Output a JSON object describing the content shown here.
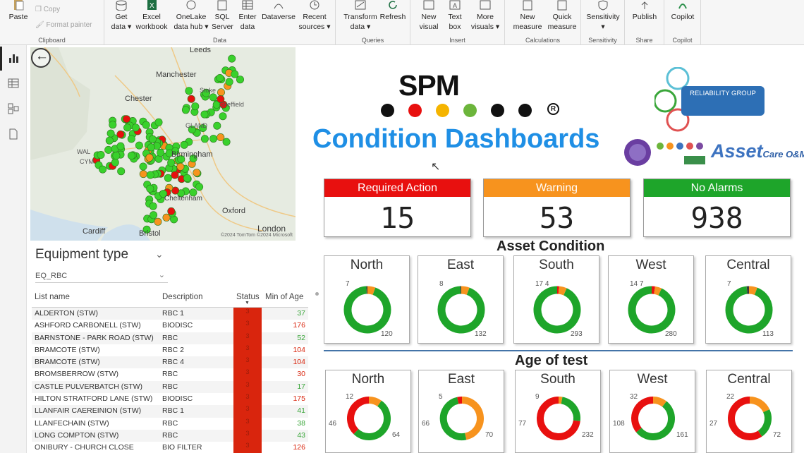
{
  "ribbon": {
    "clipboard": {
      "paste": "Paste",
      "copy": "Copy",
      "format_painter": "Format painter",
      "group": "Clipboard"
    },
    "data": {
      "group": "Data",
      "get_data": "Get data",
      "excel": "Excel workbook",
      "onelake": "OneLake data hub",
      "sql": "SQL Server",
      "enter": "Enter data",
      "dataverse": "Dataverse",
      "recent": "Recent sources"
    },
    "queries": {
      "group": "Queries",
      "transform": "Transform data",
      "refresh": "Refresh"
    },
    "insert": {
      "group": "Insert",
      "new_visual": "New visual",
      "text_box": "Text box",
      "more_visuals": "More visuals"
    },
    "calculations": {
      "group": "Calculations",
      "new_measure": "New measure",
      "quick_measure": "Quick measure"
    },
    "sensitivity": {
      "group": "Sensitivity",
      "sensitivity": "Sensitivity"
    },
    "share": {
      "group": "Share",
      "publish": "Publish"
    },
    "copilot": {
      "group": "Copilot",
      "copilot": "Copilot"
    }
  },
  "map": {
    "labels": [
      "Leeds",
      "Manchester",
      "Chester",
      "Birmingham",
      "Oxford",
      "Cardiff",
      "Bristol",
      "London",
      "WAL",
      "CYM",
      "GLAND",
      "Stoke",
      "Sheffield",
      "Cheltenham"
    ],
    "attribution": "©2024 TomTom ©2024 Microsoft"
  },
  "slicer": {
    "title": "Equipment type",
    "value": "EQ_RBC"
  },
  "table": {
    "headers": [
      "List name",
      "Description",
      "Status",
      "Min of Age"
    ],
    "rows": [
      {
        "name": "ALDERTON (STW)",
        "desc": "RBC 1",
        "status": "3",
        "age": "37",
        "age_color": "#3aa63a"
      },
      {
        "name": "ASHFORD CARBONELL (STW)",
        "desc": "BIODISC",
        "status": "3",
        "age": "176",
        "age_color": "#d9250d"
      },
      {
        "name": "BARNSTONE - PARK ROAD (STW)",
        "desc": "RBC",
        "status": "3",
        "age": "52",
        "age_color": "#3aa63a"
      },
      {
        "name": "BRAMCOTE (STW)",
        "desc": "RBC 2",
        "status": "3",
        "age": "104",
        "age_color": "#d9250d"
      },
      {
        "name": "BRAMCOTE (STW)",
        "desc": "RBC 4",
        "status": "3",
        "age": "104",
        "age_color": "#d9250d"
      },
      {
        "name": "BROMSBERROW (STW)",
        "desc": "RBC",
        "status": "3",
        "age": "30",
        "age_color": "#d9250d"
      },
      {
        "name": "CASTLE PULVERBATCH (STW)",
        "desc": "RBC",
        "status": "3",
        "age": "17",
        "age_color": "#3aa63a"
      },
      {
        "name": "HILTON STRATFORD LANE (STW)",
        "desc": "BIODISC",
        "status": "3",
        "age": "175",
        "age_color": "#d9250d"
      },
      {
        "name": "LLANFAIR CAEREINION (STW)",
        "desc": "RBC 1",
        "status": "3",
        "age": "41",
        "age_color": "#3aa63a"
      },
      {
        "name": "LLANFECHAIN (STW)",
        "desc": "RBC",
        "status": "3",
        "age": "38",
        "age_color": "#3aa63a"
      },
      {
        "name": "LONG COMPTON (STW)",
        "desc": "RBC",
        "status": "3",
        "age": "43",
        "age_color": "#3aa63a"
      },
      {
        "name": "ONIBURY - CHURCH CLOSE",
        "desc": "BIO FILTER",
        "status": "3",
        "age": "126",
        "age_color": "#d9250d"
      }
    ]
  },
  "logo": {
    "spm": "SPM",
    "reg": "R",
    "reliability": "RELIABILITY GROUP",
    "asset": "Asset",
    "asset_sub": "Care O&M"
  },
  "title": "Condition Dashboards",
  "kpis": [
    {
      "label": "Required Action",
      "value": "15",
      "color": "#e8100f"
    },
    {
      "label": "Warning",
      "value": "53",
      "color": "#f7931e"
    },
    {
      "label": "No Alarms",
      "value": "938",
      "color": "#1ea52a"
    }
  ],
  "asset_condition": {
    "title": "Asset Condition",
    "regions": [
      {
        "name": "North",
        "red": 0,
        "amber": 7,
        "dark": 1,
        "green": 120,
        "labels": {
          "tl": "7",
          "br": "120"
        }
      },
      {
        "name": "East",
        "red": 0,
        "amber": 8,
        "dark": 1,
        "green": 132,
        "labels": {
          "tl": "8",
          "br": "132"
        }
      },
      {
        "name": "South",
        "red": 4,
        "amber": 17,
        "dark": 0,
        "green": 293,
        "labels": {
          "tl": "17 4",
          "br": "293"
        }
      },
      {
        "name": "West",
        "red": 7,
        "amber": 14,
        "dark": 0,
        "green": 280,
        "labels": {
          "tl": "14 7",
          "br": "280"
        }
      },
      {
        "name": "Central",
        "red": 0,
        "amber": 7,
        "dark": 2,
        "green": 113,
        "labels": {
          "tl": "7",
          "br": "113"
        }
      }
    ]
  },
  "age_of_test": {
    "title": "Age of test",
    "regions": [
      {
        "name": "North",
        "amber": 12,
        "green": 64,
        "red": 46,
        "labels": [
          "12",
          "64",
          "46"
        ]
      },
      {
        "name": "East",
        "amber": 66,
        "green": 70,
        "red": 5,
        "labels": [
          "5",
          "70",
          "66"
        ]
      },
      {
        "name": "South",
        "amber": 9,
        "green": 77,
        "red": 232,
        "labels": [
          "9",
          "232",
          "77"
        ]
      },
      {
        "name": "West",
        "amber": 32,
        "green": 161,
        "red": 108,
        "labels": [
          "32",
          "161",
          "108"
        ]
      },
      {
        "name": "Central",
        "amber": 22,
        "green": 27,
        "red": 72,
        "labels": [
          "22",
          "72",
          "27"
        ]
      }
    ]
  },
  "colors": {
    "red": "#e8100f",
    "amber": "#f7931e",
    "green": "#1ea52a",
    "title_blue": "#1f8fe5",
    "dark": "#3a3a3a"
  }
}
